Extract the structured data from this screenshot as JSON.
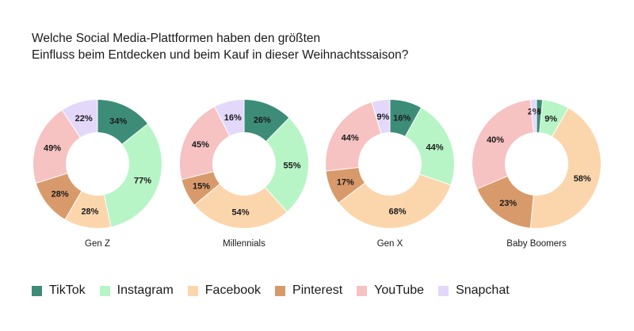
{
  "title_lines": [
    "Welche Social Media-Plattformen haben den größten",
    "Einfluss beim Entdecken und beim Kauf in dieser Weihnachtssaison?"
  ],
  "colors": {
    "TikTok": "#3d8c78",
    "Instagram": "#b7f5c6",
    "Facebook": "#fbd6ad",
    "Pinterest": "#d99a6b",
    "YouTube": "#f6c2c2",
    "Snapchat": "#e3d8fa"
  },
  "legend": [
    "TikTok",
    "Instagram",
    "Facebook",
    "Pinterest",
    "YouTube",
    "Snapchat"
  ],
  "chart_data": [
    {
      "type": "pie",
      "donut": true,
      "title": "Gen Z",
      "labels": [
        "TikTok",
        "Instagram",
        "Facebook",
        "Pinterest",
        "YouTube",
        "Snapchat"
      ],
      "values": [
        34,
        77,
        28,
        28,
        49,
        22
      ],
      "value_labels": [
        "34%",
        "77%",
        "28%",
        "28%",
        "49%",
        "22%"
      ]
    },
    {
      "type": "pie",
      "donut": true,
      "title": "Millennials",
      "labels": [
        "TikTok",
        "Instagram",
        "Facebook",
        "Pinterest",
        "YouTube",
        "Snapchat"
      ],
      "values": [
        26,
        55,
        54,
        15,
        45,
        16
      ],
      "value_labels": [
        "26%",
        "55%",
        "54%",
        "15%",
        "45%",
        "16%"
      ]
    },
    {
      "type": "pie",
      "donut": true,
      "title": "Gen X",
      "labels": [
        "TikTok",
        "Instagram",
        "Facebook",
        "Pinterest",
        "YouTube",
        "Snapchat"
      ],
      "values": [
        16,
        44,
        68,
        17,
        44,
        9
      ],
      "value_labels": [
        "16%",
        "44%",
        "68%",
        "17%",
        "44%",
        "9%"
      ]
    },
    {
      "type": "pie",
      "donut": true,
      "title": "Baby Boomers",
      "labels": [
        "TikTok",
        "Instagram",
        "Facebook",
        "Pinterest",
        "YouTube",
        "Snapchat"
      ],
      "values": [
        2,
        9,
        58,
        23,
        40,
        2
      ],
      "value_labels": [
        "2%",
        "9%",
        "58%",
        "23%",
        "40%",
        "2%"
      ]
    }
  ]
}
